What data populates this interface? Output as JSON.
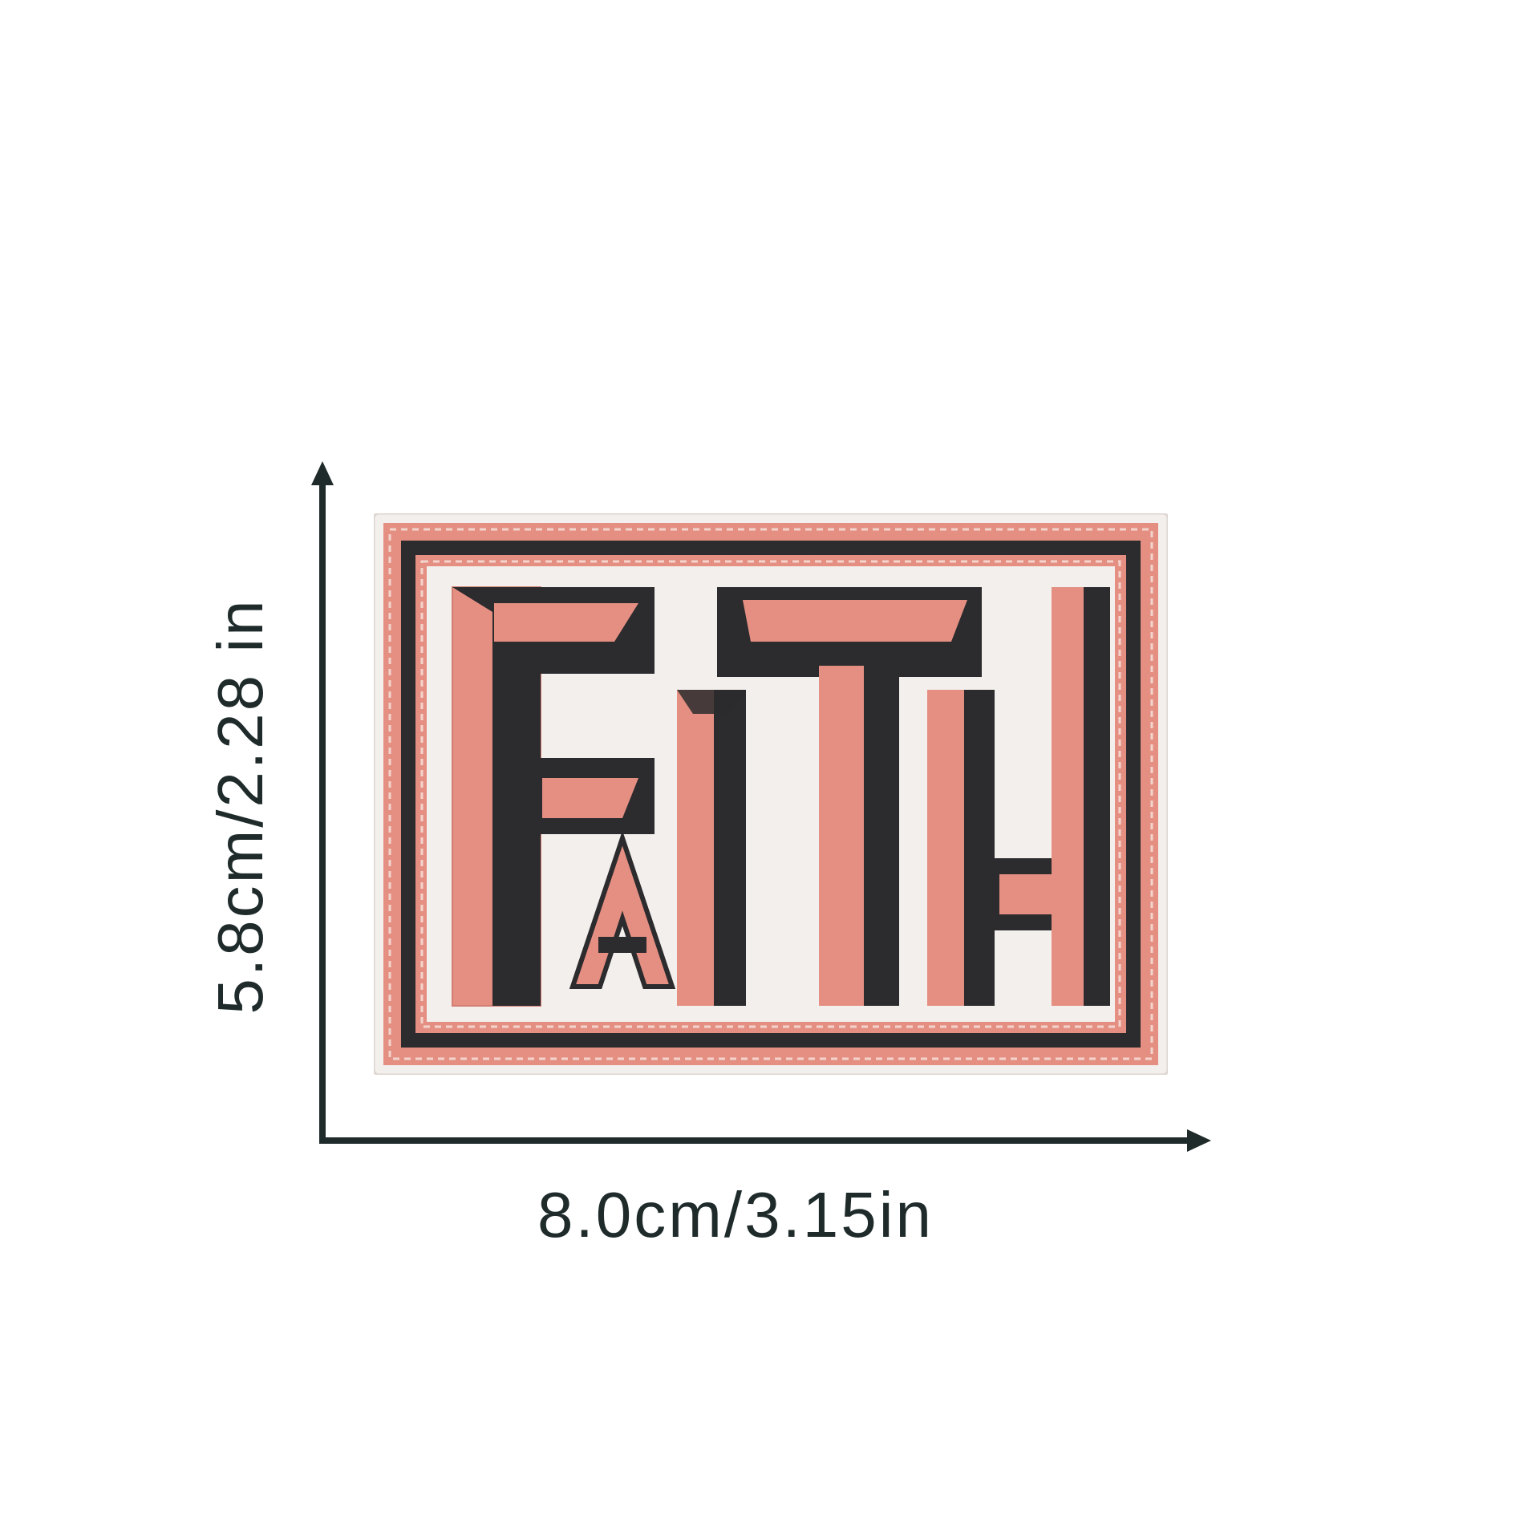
{
  "dimensions": {
    "width_label": "8.0cm/3.15in",
    "height_label": "5.8cm/2.28 in"
  },
  "patch": {
    "text": "FAITH",
    "colors": {
      "base": "#f3efec",
      "pink": "#e48f82",
      "dark": "#2c2b2e"
    }
  },
  "colors": {
    "axis": "#1f2a2a"
  }
}
